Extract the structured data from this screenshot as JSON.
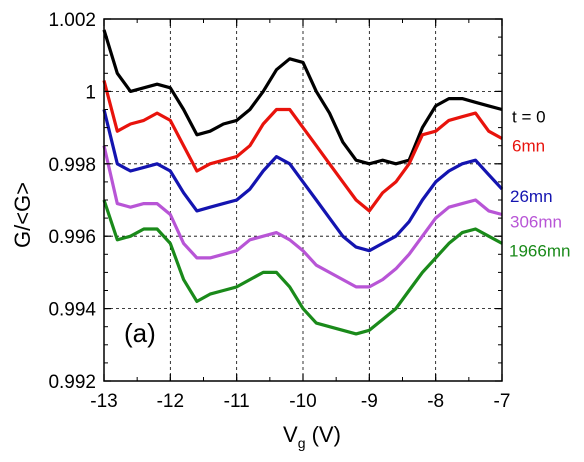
{
  "chart_data": {
    "type": "line",
    "panel_label": "(a)",
    "xlabel": "V",
    "xlabel_sub": "g",
    "xlabel_unit": " (V)",
    "ylabel": "G/<G>",
    "xlim": [
      -13,
      -7
    ],
    "ylim": [
      0.992,
      1.002
    ],
    "grid": true,
    "x_ticks": [
      -13,
      -12,
      -11,
      -10,
      -9,
      -8,
      -7
    ],
    "x_tick_labels": [
      "-13",
      "-12",
      "-11",
      "-10",
      "-9",
      "-8",
      "-7"
    ],
    "y_ticks": [
      0.992,
      0.994,
      0.996,
      0.998,
      1.0,
      1.002
    ],
    "y_tick_labels": [
      "0.992",
      "0.994",
      "0.996",
      "0.998",
      "1",
      "1.002"
    ],
    "series": [
      {
        "name": "t = 0",
        "color": "#000000",
        "x": [
          -13.0,
          -12.8,
          -12.6,
          -12.4,
          -12.2,
          -12.0,
          -11.8,
          -11.6,
          -11.4,
          -11.2,
          -11.0,
          -10.8,
          -10.6,
          -10.4,
          -10.2,
          -10.0,
          -9.8,
          -9.6,
          -9.4,
          -9.2,
          -9.0,
          -8.8,
          -8.6,
          -8.4,
          -8.2,
          -8.0,
          -7.8,
          -7.6,
          -7.4,
          -7.2,
          -7.0
        ],
        "y": [
          1.0017,
          1.0005,
          1.0,
          1.0001,
          1.0002,
          1.0001,
          0.9995,
          0.9988,
          0.9989,
          0.9991,
          0.9992,
          0.9995,
          1.0,
          1.0006,
          1.0009,
          1.0008,
          1.0,
          0.9994,
          0.9986,
          0.9981,
          0.998,
          0.9981,
          0.998,
          0.9981,
          0.999,
          0.9996,
          0.9998,
          0.9998,
          0.9997,
          0.9996,
          0.9995
        ]
      },
      {
        "name": "6mn",
        "color": "#e8130c",
        "x": [
          -13.0,
          -12.8,
          -12.6,
          -12.4,
          -12.2,
          -12.0,
          -11.8,
          -11.6,
          -11.4,
          -11.2,
          -11.0,
          -10.8,
          -10.6,
          -10.4,
          -10.2,
          -10.0,
          -9.8,
          -9.6,
          -9.4,
          -9.2,
          -9.0,
          -8.8,
          -8.6,
          -8.4,
          -8.2,
          -8.0,
          -7.8,
          -7.6,
          -7.4,
          -7.2,
          -7.0
        ],
        "y": [
          1.0003,
          0.9989,
          0.9991,
          0.9992,
          0.9994,
          0.9992,
          0.9985,
          0.9978,
          0.998,
          0.9981,
          0.9982,
          0.9985,
          0.9991,
          0.9995,
          0.9995,
          0.999,
          0.9985,
          0.998,
          0.9975,
          0.997,
          0.9967,
          0.9972,
          0.9975,
          0.998,
          0.9988,
          0.9989,
          0.9992,
          0.9993,
          0.9994,
          0.9989,
          0.9987
        ]
      },
      {
        "name": "26mn",
        "color": "#1414b0",
        "x": [
          -13.0,
          -12.8,
          -12.6,
          -12.4,
          -12.2,
          -12.0,
          -11.8,
          -11.6,
          -11.4,
          -11.2,
          -11.0,
          -10.8,
          -10.6,
          -10.4,
          -10.2,
          -10.0,
          -9.8,
          -9.6,
          -9.4,
          -9.2,
          -9.0,
          -8.8,
          -8.6,
          -8.4,
          -8.2,
          -8.0,
          -7.8,
          -7.6,
          -7.4,
          -7.2,
          -7.0
        ],
        "y": [
          0.9995,
          0.998,
          0.9978,
          0.9979,
          0.998,
          0.9978,
          0.9972,
          0.9967,
          0.9968,
          0.9969,
          0.997,
          0.9973,
          0.9978,
          0.9982,
          0.998,
          0.9975,
          0.997,
          0.9965,
          0.996,
          0.9957,
          0.9956,
          0.9958,
          0.996,
          0.9964,
          0.997,
          0.9975,
          0.9978,
          0.998,
          0.9981,
          0.9977,
          0.9973
        ]
      },
      {
        "name": "306mn",
        "color": "#b855d6",
        "x": [
          -13.0,
          -12.8,
          -12.6,
          -12.4,
          -12.2,
          -12.0,
          -11.8,
          -11.6,
          -11.4,
          -11.2,
          -11.0,
          -10.8,
          -10.6,
          -10.4,
          -10.2,
          -10.0,
          -9.8,
          -9.6,
          -9.4,
          -9.2,
          -9.0,
          -8.8,
          -8.6,
          -8.4,
          -8.2,
          -8.0,
          -7.8,
          -7.6,
          -7.4,
          -7.2,
          -7.0
        ],
        "y": [
          0.9985,
          0.9969,
          0.9968,
          0.9969,
          0.9969,
          0.9966,
          0.9958,
          0.9954,
          0.9954,
          0.9955,
          0.9956,
          0.9959,
          0.996,
          0.9961,
          0.9959,
          0.9956,
          0.9952,
          0.995,
          0.9948,
          0.9946,
          0.9946,
          0.9948,
          0.9951,
          0.9955,
          0.996,
          0.9965,
          0.9968,
          0.9969,
          0.997,
          0.9967,
          0.9966
        ]
      },
      {
        "name": "1966mn",
        "color": "#1a8a1a",
        "x": [
          -13.0,
          -12.8,
          -12.6,
          -12.4,
          -12.2,
          -12.0,
          -11.8,
          -11.6,
          -11.4,
          -11.2,
          -11.0,
          -10.8,
          -10.6,
          -10.4,
          -10.2,
          -10.0,
          -9.8,
          -9.6,
          -9.4,
          -9.2,
          -9.0,
          -8.8,
          -8.6,
          -8.4,
          -8.2,
          -8.0,
          -7.8,
          -7.6,
          -7.4,
          -7.2,
          -7.0
        ],
        "y": [
          0.997,
          0.9959,
          0.996,
          0.9962,
          0.9962,
          0.9958,
          0.9948,
          0.9942,
          0.9944,
          0.9945,
          0.9946,
          0.9948,
          0.995,
          0.995,
          0.9946,
          0.994,
          0.9936,
          0.9935,
          0.9934,
          0.9933,
          0.9934,
          0.9937,
          0.994,
          0.9945,
          0.995,
          0.9954,
          0.9958,
          0.9961,
          0.9962,
          0.996,
          0.9958
        ]
      }
    ]
  }
}
